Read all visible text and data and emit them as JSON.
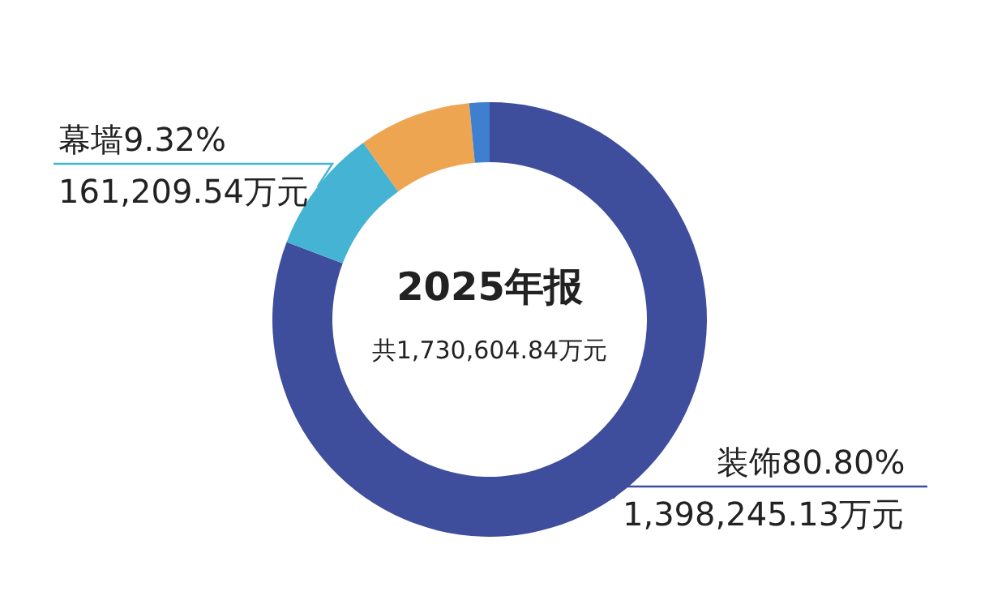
{
  "chart_data": {
    "type": "donut",
    "title": "2025年报",
    "subtitle": "共1,730,604.84万元",
    "categories": [
      "装饰",
      "幕墙",
      null,
      null
    ],
    "values": [
      80.8,
      9.32,
      8.38,
      1.5
    ],
    "colors": [
      "#3f4e9c",
      "#45b3d3",
      "#eda552",
      "#3f7fd0"
    ],
    "value_labels": [
      "80.80%\n1,398,245.13万元",
      "9.32%\n161,209.54万元",
      null,
      null
    ]
  }
}
